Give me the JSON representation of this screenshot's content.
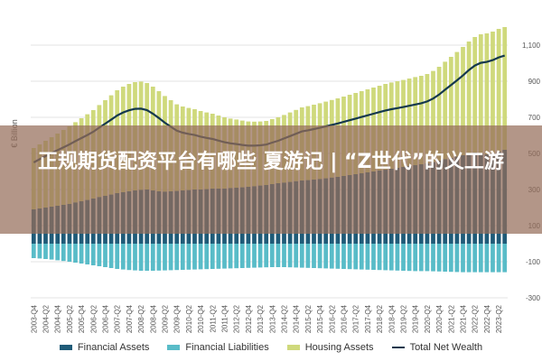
{
  "headline": "正规期货配资平台有哪些 夏游记 | “Z世代”的义工游",
  "colors": {
    "financial_assets": "#1f5b78",
    "financial_liabilities": "#59bcc8",
    "housing_assets": "#cfd97c",
    "total_net_wealth": "#14384d"
  },
  "chart_data": {
    "type": "bar",
    "ylabel": "€ Billion",
    "ylim": [
      -300,
      1200
    ],
    "yticks": [
      -300,
      -100,
      100,
      300,
      500,
      700,
      900,
      1100
    ],
    "ytick_labels": [
      "-300",
      "-100",
      "100",
      "300",
      "500",
      "700",
      "900",
      "1,100"
    ],
    "grid": true,
    "legend_position": "bottom",
    "categories": [
      "2003-Q4",
      "2004-Q1",
      "2004-Q2",
      "2004-Q3",
      "2004-Q4",
      "2005-Q1",
      "2005-Q2",
      "2005-Q3",
      "2005-Q4",
      "2006-Q1",
      "2006-Q2",
      "2006-Q3",
      "2006-Q4",
      "2007-Q1",
      "2007-Q2",
      "2007-Q3",
      "2007-Q4",
      "2008-Q1",
      "2008-Q2",
      "2008-Q3",
      "2008-Q4",
      "2009-Q1",
      "2009-Q2",
      "2009-Q3",
      "2009-Q4",
      "2010-Q1",
      "2010-Q2",
      "2010-Q3",
      "2010-Q4",
      "2011-Q1",
      "2011-Q2",
      "2011-Q3",
      "2011-Q4",
      "2012-Q1",
      "2012-Q2",
      "2012-Q3",
      "2012-Q4",
      "2013-Q1",
      "2013-Q2",
      "2013-Q3",
      "2013-Q4",
      "2014-Q1",
      "2014-Q2",
      "2014-Q3",
      "2014-Q4",
      "2015-Q1",
      "2015-Q2",
      "2015-Q3",
      "2015-Q4",
      "2016-Q1",
      "2016-Q2",
      "2016-Q3",
      "2016-Q4",
      "2017-Q1",
      "2017-Q2",
      "2017-Q3",
      "2017-Q4",
      "2018-Q1",
      "2018-Q2",
      "2018-Q3",
      "2018-Q4",
      "2019-Q1",
      "2019-Q2",
      "2019-Q3",
      "2019-Q4",
      "2020-Q1",
      "2020-Q2",
      "2020-Q3",
      "2020-Q4",
      "2021-Q1",
      "2021-Q2",
      "2021-Q3",
      "2021-Q4",
      "2022-Q1",
      "2022-Q2",
      "2022-Q3",
      "2022-Q4",
      "2023-Q1",
      "2023-Q2",
      "2023-Q3"
    ],
    "tick_labels": [
      "2003-Q4",
      "2004-Q2",
      "2004-Q4",
      "2005-Q2",
      "2005-Q4",
      "2006-Q2",
      "2006-Q4",
      "2007-Q2",
      "2007-Q4",
      "2008-Q2",
      "2008-Q4",
      "2009-Q2",
      "2009-Q4",
      "2010-Q2",
      "2010-Q4",
      "2011-Q2",
      "2011-Q4",
      "2012-Q2",
      "2012-Q4",
      "2013-Q2",
      "2013-Q4",
      "2014-Q2",
      "2014-Q4",
      "2015-Q2",
      "2015-Q4",
      "2016-Q2",
      "2016-Q4",
      "2017-Q2",
      "2017-Q4",
      "2018-Q2",
      "2018-Q4",
      "2019-Q2",
      "2019-Q4",
      "2020-Q2",
      "2020-Q4",
      "2021-Q2",
      "2021-Q4",
      "2022-Q2",
      "2022-Q4",
      "2023-Q2"
    ],
    "series": [
      {
        "name": "Financial Assets",
        "kind": "bar",
        "values": [
          190,
          195,
          200,
          205,
          210,
          215,
          220,
          228,
          235,
          242,
          250,
          258,
          265,
          272,
          280,
          285,
          290,
          295,
          298,
          300,
          295,
          290,
          288,
          290,
          292,
          295,
          297,
          300,
          300,
          302,
          305,
          305,
          305,
          308,
          310,
          312,
          315,
          318,
          322,
          325,
          330,
          335,
          338,
          342,
          346,
          350,
          352,
          355,
          358,
          362,
          366,
          370,
          375,
          380,
          385,
          390,
          395,
          400,
          405,
          410,
          415,
          420,
          425,
          430,
          435,
          440,
          445,
          452,
          460,
          468,
          475,
          482,
          490,
          500,
          505,
          500,
          495,
          500,
          510,
          520
        ]
      },
      {
        "name": "Financial Liabilities",
        "kind": "bar",
        "values": [
          -80,
          -82,
          -85,
          -88,
          -92,
          -96,
          -100,
          -105,
          -110,
          -115,
          -120,
          -125,
          -130,
          -135,
          -140,
          -143,
          -146,
          -148,
          -150,
          -150,
          -150,
          -149,
          -148,
          -147,
          -146,
          -145,
          -144,
          -143,
          -142,
          -141,
          -140,
          -139,
          -138,
          -137,
          -136,
          -135,
          -134,
          -133,
          -132,
          -131,
          -130,
          -130,
          -130,
          -131,
          -132,
          -133,
          -134,
          -135,
          -136,
          -137,
          -138,
          -139,
          -140,
          -141,
          -142,
          -143,
          -144,
          -145,
          -146,
          -147,
          -148,
          -149,
          -150,
          -151,
          -152,
          -152,
          -152,
          -153,
          -154,
          -155,
          -156,
          -157,
          -158,
          -158,
          -158,
          -158,
          -158,
          -158,
          -158,
          -158
        ]
      },
      {
        "name": "Housing Assets",
        "kind": "bar",
        "values": [
          340,
          355,
          370,
          385,
          400,
          415,
          430,
          445,
          460,
          475,
          490,
          510,
          530,
          550,
          570,
          585,
          595,
          600,
          600,
          590,
          575,
          555,
          530,
          505,
          480,
          465,
          455,
          445,
          435,
          425,
          415,
          405,
          395,
          385,
          378,
          370,
          362,
          358,
          355,
          355,
          360,
          365,
          375,
          385,
          395,
          405,
          410,
          415,
          420,
          425,
          430,
          435,
          440,
          445,
          450,
          455,
          460,
          465,
          470,
          475,
          478,
          480,
          482,
          485,
          488,
          490,
          495,
          505,
          520,
          540,
          560,
          580,
          600,
          620,
          640,
          660,
          670,
          675,
          680,
          680
        ]
      },
      {
        "name": "Total Net Wealth",
        "kind": "line",
        "values": [
          450,
          468,
          485,
          502,
          518,
          534,
          550,
          568,
          585,
          602,
          620,
          643,
          665,
          687,
          710,
          727,
          739,
          747,
          748,
          740,
          720,
          696,
          670,
          648,
          626,
          615,
          608,
          602,
          593,
          586,
          580,
          571,
          562,
          556,
          552,
          547,
          543,
          543,
          545,
          549,
          560,
          570,
          583,
          596,
          609,
          622,
          628,
          635,
          642,
          650,
          658,
          666,
          675,
          684,
          693,
          702,
          711,
          720,
          729,
          738,
          745,
          751,
          757,
          764,
          771,
          778,
          788,
          804,
          826,
          853,
          879,
          905,
          932,
          962,
          987,
          1002,
          1007,
          1017,
          1032,
          1042
        ]
      }
    ]
  },
  "legend": [
    {
      "label": "Financial Assets",
      "kind": "bar",
      "color": "#1f5b78"
    },
    {
      "label": "Financial Liabilities",
      "kind": "bar",
      "color": "#59bcc8"
    },
    {
      "label": "Housing Assets",
      "kind": "bar",
      "color": "#cfd97c"
    },
    {
      "label": "Total Net Wealth",
      "kind": "line",
      "color": "#14384d"
    }
  ]
}
